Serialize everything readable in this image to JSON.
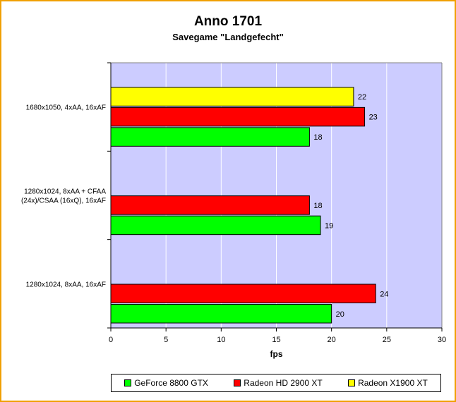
{
  "chart_data": {
    "type": "bar",
    "orientation": "horizontal",
    "title": "Anno 1701",
    "subtitle": "Savegame \"Landgefecht\"",
    "xlabel": "fps",
    "ylabel": "",
    "xlim": [
      0,
      30
    ],
    "xticks": [
      0,
      5,
      10,
      15,
      20,
      25,
      30
    ],
    "grid": true,
    "legend_position": "bottom",
    "plot_background": "#ccccff",
    "categories": [
      "1680x1050, 4xAA, 16xAF",
      "1280x1024, 8xAA + CFAA (24x)/CSAA (16xQ), 16xAF",
      "1280x1024, 8xAA, 16xAF"
    ],
    "category_label_lines": [
      [
        "1680x1050, 4xAA, 16xAF"
      ],
      [
        "1280x1024, 8xAA + CFAA",
        "(24x)/CSAA (16xQ), 16xAF"
      ],
      [
        "1280x1024, 8xAA, 16xAF"
      ]
    ],
    "series": [
      {
        "name": "GeForce 8800 GTX",
        "color": "#00ff00",
        "values": [
          18,
          19,
          20
        ]
      },
      {
        "name": "Radeon HD 2900 XT",
        "color": "#ff0000",
        "values": [
          23,
          18,
          24
        ]
      },
      {
        "name": "Radeon X1900 XT",
        "color": "#ffff00",
        "values": [
          22,
          null,
          null
        ]
      }
    ]
  }
}
